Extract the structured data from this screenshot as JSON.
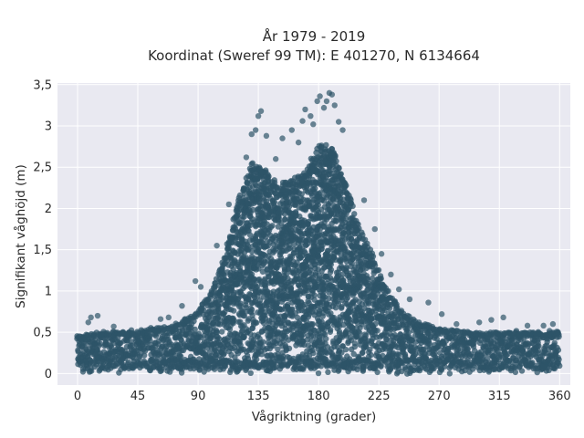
{
  "chart_data": {
    "type": "scatter",
    "title": [
      "År 1979 - 2019",
      "Koordinat (Sweref 99 TM): E 401270, N 6134664"
    ],
    "xlabel": "Vågriktning (grader)",
    "ylabel": "Signifikant våghöjd (m)",
    "xlim": [
      -15,
      368
    ],
    "ylim": [
      -0.14,
      3.52
    ],
    "x_ticks": [
      0,
      45,
      90,
      135,
      180,
      225,
      270,
      315,
      360
    ],
    "x_tick_labels": [
      "0",
      "45",
      "90",
      "135",
      "180",
      "225",
      "270",
      "315",
      "360"
    ],
    "y_ticks": [
      0,
      0.5,
      1,
      1.5,
      2,
      2.5,
      3,
      3.5
    ],
    "y_tick_labels": [
      "0",
      "0,5",
      "1",
      "1,5",
      "2",
      "2,5",
      "3",
      "3,5"
    ],
    "grid": true,
    "marker_color": "#2e5468",
    "plot_background": "#e9e9f1",
    "grid_color": "#ffffff",
    "upper_envelope": {
      "x": [
        0,
        15,
        30,
        45,
        60,
        75,
        90,
        100,
        110,
        120,
        130,
        140,
        150,
        160,
        170,
        180,
        190,
        200,
        210,
        220,
        230,
        240,
        250,
        260,
        270,
        285,
        300,
        315,
        330,
        345,
        360
      ],
      "y": [
        0.45,
        0.5,
        0.5,
        0.52,
        0.55,
        0.6,
        0.75,
        1.0,
        1.45,
        2.1,
        2.55,
        2.45,
        2.3,
        2.35,
        2.45,
        2.8,
        2.75,
        2.3,
        1.8,
        1.45,
        1.05,
        0.8,
        0.65,
        0.6,
        0.55,
        0.52,
        0.5,
        0.5,
        0.5,
        0.5,
        0.5
      ]
    },
    "outliers": [
      {
        "x": 8,
        "y": 0.62
      },
      {
        "x": 10,
        "y": 0.68
      },
      {
        "x": 15,
        "y": 0.7
      },
      {
        "x": 27,
        "y": 0.57
      },
      {
        "x": 62,
        "y": 0.66
      },
      {
        "x": 68,
        "y": 0.68
      },
      {
        "x": 78,
        "y": 0.82
      },
      {
        "x": 88,
        "y": 1.12
      },
      {
        "x": 92,
        "y": 1.05
      },
      {
        "x": 104,
        "y": 1.55
      },
      {
        "x": 113,
        "y": 2.05
      },
      {
        "x": 126,
        "y": 2.62
      },
      {
        "x": 130,
        "y": 2.9
      },
      {
        "x": 133,
        "y": 2.95
      },
      {
        "x": 135,
        "y": 3.12
      },
      {
        "x": 137,
        "y": 3.18
      },
      {
        "x": 141,
        "y": 2.88
      },
      {
        "x": 148,
        "y": 2.6
      },
      {
        "x": 153,
        "y": 2.85
      },
      {
        "x": 160,
        "y": 2.95
      },
      {
        "x": 165,
        "y": 2.8
      },
      {
        "x": 168,
        "y": 3.06
      },
      {
        "x": 170,
        "y": 3.2
      },
      {
        "x": 174,
        "y": 3.12
      },
      {
        "x": 176,
        "y": 3.02
      },
      {
        "x": 179,
        "y": 3.3
      },
      {
        "x": 181,
        "y": 3.36
      },
      {
        "x": 184,
        "y": 3.22
      },
      {
        "x": 186,
        "y": 3.3
      },
      {
        "x": 188,
        "y": 3.4
      },
      {
        "x": 190,
        "y": 3.38
      },
      {
        "x": 192,
        "y": 3.25
      },
      {
        "x": 195,
        "y": 3.05
      },
      {
        "x": 198,
        "y": 2.95
      },
      {
        "x": 214,
        "y": 2.1
      },
      {
        "x": 222,
        "y": 1.75
      },
      {
        "x": 227,
        "y": 1.45
      },
      {
        "x": 234,
        "y": 1.2
      },
      {
        "x": 240,
        "y": 1.02
      },
      {
        "x": 248,
        "y": 0.9
      },
      {
        "x": 262,
        "y": 0.86
      },
      {
        "x": 272,
        "y": 0.72
      },
      {
        "x": 283,
        "y": 0.6
      },
      {
        "x": 300,
        "y": 0.62
      },
      {
        "x": 309,
        "y": 0.65
      },
      {
        "x": 318,
        "y": 0.68
      },
      {
        "x": 336,
        "y": 0.58
      },
      {
        "x": 348,
        "y": 0.58
      },
      {
        "x": 355,
        "y": 0.6
      }
    ]
  }
}
